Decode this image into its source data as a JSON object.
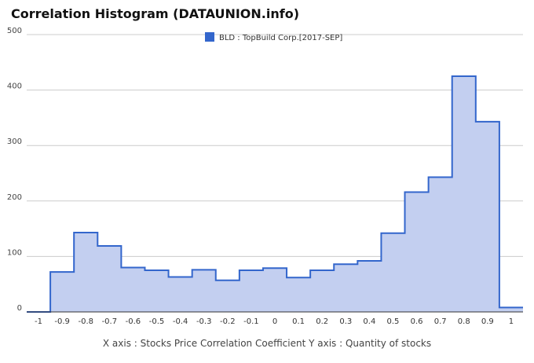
{
  "chart_data": {
    "type": "area",
    "title": "Correlation Histogram (DATAUNION.info)",
    "axis_caption": "X axis : Stocks Price Correlation Coefficient  Y axis : Quantity of stocks",
    "series": [
      {
        "name": "BLD : TopBuild Corp.[2017-SEP]",
        "color": "#3366cc",
        "fill": "#c3cff0",
        "bins": [
          {
            "from": -1.05,
            "to": -0.95,
            "value": 0
          },
          {
            "from": -0.95,
            "to": -0.85,
            "value": 72
          },
          {
            "from": -0.85,
            "to": -0.75,
            "value": 143
          },
          {
            "from": -0.75,
            "to": -0.65,
            "value": 119
          },
          {
            "from": -0.65,
            "to": -0.55,
            "value": 80
          },
          {
            "from": -0.55,
            "to": -0.45,
            "value": 75
          },
          {
            "from": -0.45,
            "to": -0.35,
            "value": 63
          },
          {
            "from": -0.35,
            "to": -0.25,
            "value": 76
          },
          {
            "from": -0.25,
            "to": -0.15,
            "value": 57
          },
          {
            "from": -0.15,
            "to": -0.05,
            "value": 75
          },
          {
            "from": -0.05,
            "to": 0.05,
            "value": 79
          },
          {
            "from": 0.05,
            "to": 0.15,
            "value": 62
          },
          {
            "from": 0.15,
            "to": 0.25,
            "value": 75
          },
          {
            "from": 0.25,
            "to": 0.35,
            "value": 86
          },
          {
            "from": 0.35,
            "to": 0.45,
            "value": 92
          },
          {
            "from": 0.45,
            "to": 0.55,
            "value": 142
          },
          {
            "from": 0.55,
            "to": 0.65,
            "value": 216
          },
          {
            "from": 0.65,
            "to": 0.75,
            "value": 243
          },
          {
            "from": 0.75,
            "to": 0.85,
            "value": 425
          },
          {
            "from": 0.85,
            "to": 0.95,
            "value": 343
          },
          {
            "from": 0.95,
            "to": 1.05,
            "value": 8
          }
        ]
      }
    ],
    "xlim": [
      -1.05,
      1.05
    ],
    "ylim": [
      0,
      500
    ],
    "x_ticks": [
      -1,
      -0.9,
      -0.8,
      -0.7,
      -0.6,
      -0.5,
      -0.4,
      -0.3,
      -0.2,
      -0.1,
      0,
      0.1,
      0.2,
      0.3,
      0.4,
      0.5,
      0.6,
      0.7,
      0.8,
      0.9,
      1
    ],
    "x_tick_labels": [
      "-1",
      "-0.9",
      "-0.8",
      "-0.7",
      "-0.6",
      "-0.5",
      "-0.4",
      "-0.3",
      "-0.2",
      "-0.1",
      "0",
      "0.1",
      "0.2",
      "0.3",
      "0.4",
      "0.5",
      "0.6",
      "0.7",
      "0.8",
      "0.9",
      "1"
    ],
    "y_ticks": [
      0,
      100,
      200,
      300,
      400,
      500
    ],
    "y_tick_labels": [
      "0",
      "100",
      "200",
      "300",
      "400",
      "500"
    ],
    "grid": true,
    "legend_position": "top"
  }
}
